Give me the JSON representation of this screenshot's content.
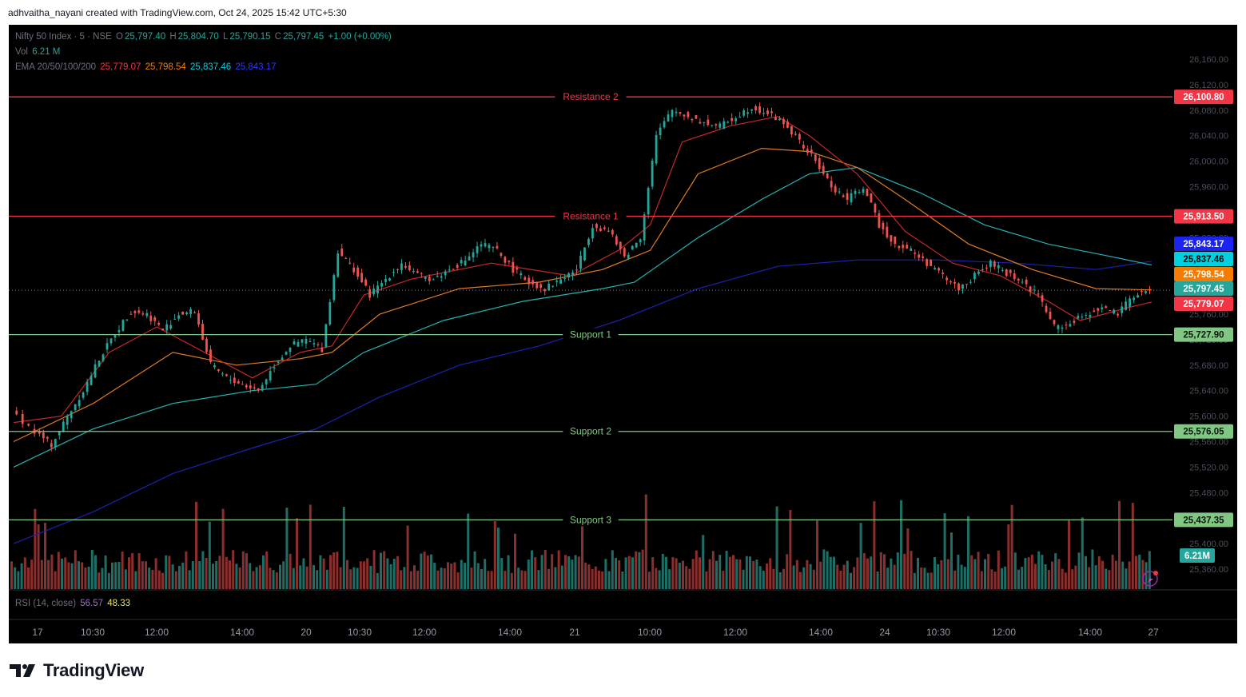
{
  "header": {
    "caption": "adhvaitha_nayani created with TradingView.com, Oct 24, 2025 15:42 UTC+5:30"
  },
  "legend": {
    "symbol": "Nifty 50 Index · 5 · NSE",
    "o_label": "O",
    "o_value": "25,797.40",
    "h_label": "H",
    "h_value": "25,804.70",
    "l_label": "L",
    "l_value": "25,790.15",
    "c_label": "C",
    "c_value": "25,797.45",
    "change": "+1.00 (+0.00%)",
    "vol_label": "Vol",
    "vol_value": "6.21 M",
    "ema_label": "EMA 20/50/100/200",
    "ema20": "25,779.07",
    "ema50": "25,798.54",
    "ema100": "25,837.46",
    "ema200": "25,843.17"
  },
  "rsi": {
    "label": "RSI (14, close)",
    "value1": "56.57",
    "value2": "48.33"
  },
  "brand": {
    "name": "TradingView"
  },
  "colors": {
    "bg": "#000000",
    "up": "#26a69a",
    "down": "#ef5350",
    "ema20": "#c62828",
    "ema50": "#e07b20",
    "ema100": "#26b2b2",
    "ema200": "#1a23b0",
    "resistance": "#f23645",
    "support": "#81c784"
  },
  "chart_data": {
    "type": "line",
    "title": "Nifty 50 Index · 5 · NSE",
    "ylim": [
      25340,
      26180
    ],
    "y_ticks": [
      "26,160.00",
      "26,120.00",
      "26,080.00",
      "26,040.00",
      "26,000.00",
      "25,960.00",
      "25,920.00",
      "25,880.00",
      "25,840.00",
      "25,800.00",
      "25,760.00",
      "25,720.00",
      "25,680.00",
      "25,640.00",
      "25,600.00",
      "25,560.00",
      "25,520.00",
      "25,480.00",
      "25,440.00",
      "25,400.00",
      "25,360.00"
    ],
    "x_ticks": [
      "17",
      "10:30",
      "12:00",
      "14:00",
      "20",
      "10:30",
      "12:00",
      "14:00",
      "21",
      "10:00",
      "12:00",
      "14:00",
      "24",
      "10:30",
      "12:00",
      "14:00",
      "27"
    ],
    "levels": [
      {
        "name": "Resistance 2",
        "value": 26100.8,
        "label": "26,100.80",
        "kind": "resistance"
      },
      {
        "name": "Resistance 1",
        "value": 25913.5,
        "label": "25,913.50",
        "kind": "resistance"
      },
      {
        "name": "Support 1",
        "value": 25727.9,
        "label": "25,727.90",
        "kind": "support"
      },
      {
        "name": "Support 2",
        "value": 25576.05,
        "label": "25,576.05",
        "kind": "support"
      },
      {
        "name": "Support 3",
        "value": 25437.35,
        "label": "25,437.35",
        "kind": "support"
      }
    ],
    "price_labels": [
      {
        "value": 25843.17,
        "label": "25,843.17",
        "color": "#1a23f0"
      },
      {
        "value": 25837.46,
        "label": "25,837.46",
        "color": "#00d0e0"
      },
      {
        "value": 25798.54,
        "label": "25,798.54",
        "color": "#f57c00"
      },
      {
        "value": 25797.45,
        "label": "25,797.45",
        "color": "#26a69a"
      },
      {
        "value": 25779.07,
        "label": "25,779.07",
        "color": "#f23645"
      }
    ],
    "last_close": 25797.45,
    "volume_label": "6.21M",
    "close_path": [
      [
        0,
        25610
      ],
      [
        3,
        25575
      ],
      [
        5,
        25555
      ],
      [
        7,
        25600
      ],
      [
        9,
        25640
      ],
      [
        11,
        25690
      ],
      [
        13,
        25730
      ],
      [
        15,
        25765
      ],
      [
        17,
        25760
      ],
      [
        19,
        25735
      ],
      [
        21,
        25760
      ],
      [
        23,
        25765
      ],
      [
        25,
        25680
      ],
      [
        27,
        25660
      ],
      [
        29,
        25650
      ],
      [
        31,
        25640
      ],
      [
        33,
        25680
      ],
      [
        35,
        25710
      ],
      [
        37,
        25720
      ],
      [
        39,
        25705
      ],
      [
        41,
        25860
      ],
      [
        43,
        25830
      ],
      [
        45,
        25790
      ],
      [
        47,
        25815
      ],
      [
        49,
        25840
      ],
      [
        51,
        25820
      ],
      [
        53,
        25815
      ],
      [
        55,
        25830
      ],
      [
        57,
        25845
      ],
      [
        59,
        25870
      ],
      [
        61,
        25860
      ],
      [
        63,
        25830
      ],
      [
        65,
        25810
      ],
      [
        67,
        25800
      ],
      [
        69,
        25815
      ],
      [
        71,
        25830
      ],
      [
        73,
        25900
      ],
      [
        75,
        25890
      ],
      [
        77,
        25850
      ],
      [
        79,
        25880
      ],
      [
        81,
        26040
      ],
      [
        83,
        26080
      ],
      [
        85,
        26070
      ],
      [
        87,
        26060
      ],
      [
        89,
        26055
      ],
      [
        91,
        26070
      ],
      [
        93,
        26085
      ],
      [
        95,
        26075
      ],
      [
        97,
        26060
      ],
      [
        99,
        26030
      ],
      [
        101,
        26000
      ],
      [
        103,
        25960
      ],
      [
        105,
        25940
      ],
      [
        107,
        25960
      ],
      [
        109,
        25900
      ],
      [
        111,
        25870
      ],
      [
        113,
        25860
      ],
      [
        115,
        25840
      ],
      [
        117,
        25820
      ],
      [
        119,
        25800
      ],
      [
        121,
        25820
      ],
      [
        123,
        25840
      ],
      [
        125,
        25825
      ],
      [
        127,
        25810
      ],
      [
        129,
        25790
      ],
      [
        131,
        25740
      ],
      [
        133,
        25745
      ],
      [
        135,
        25760
      ],
      [
        137,
        25770
      ],
      [
        139,
        25760
      ],
      [
        141,
        25790
      ],
      [
        143,
        25797
      ]
    ],
    "ema20_path": [
      [
        0,
        25590
      ],
      [
        6,
        25600
      ],
      [
        12,
        25700
      ],
      [
        18,
        25740
      ],
      [
        24,
        25700
      ],
      [
        30,
        25660
      ],
      [
        36,
        25700
      ],
      [
        40,
        25710
      ],
      [
        44,
        25790
      ],
      [
        50,
        25815
      ],
      [
        60,
        25840
      ],
      [
        70,
        25820
      ],
      [
        76,
        25860
      ],
      [
        80,
        25900
      ],
      [
        84,
        26030
      ],
      [
        90,
        26055
      ],
      [
        96,
        26070
      ],
      [
        100,
        26040
      ],
      [
        106,
        25980
      ],
      [
        112,
        25890
      ],
      [
        118,
        25840
      ],
      [
        124,
        25820
      ],
      [
        130,
        25780
      ],
      [
        134,
        25750
      ],
      [
        140,
        25770
      ],
      [
        143,
        25779
      ]
    ],
    "ema50_path": [
      [
        0,
        25560
      ],
      [
        10,
        25620
      ],
      [
        20,
        25700
      ],
      [
        28,
        25680
      ],
      [
        36,
        25690
      ],
      [
        40,
        25700
      ],
      [
        46,
        25760
      ],
      [
        56,
        25800
      ],
      [
        66,
        25810
      ],
      [
        74,
        25830
      ],
      [
        80,
        25860
      ],
      [
        86,
        25980
      ],
      [
        94,
        26020
      ],
      [
        100,
        26015
      ],
      [
        106,
        25990
      ],
      [
        112,
        25940
      ],
      [
        120,
        25870
      ],
      [
        128,
        25830
      ],
      [
        136,
        25800
      ],
      [
        143,
        25798
      ]
    ],
    "ema100_path": [
      [
        0,
        25520
      ],
      [
        10,
        25580
      ],
      [
        20,
        25620
      ],
      [
        30,
        25640
      ],
      [
        38,
        25650
      ],
      [
        44,
        25700
      ],
      [
        54,
        25750
      ],
      [
        64,
        25780
      ],
      [
        74,
        25800
      ],
      [
        78,
        25810
      ],
      [
        86,
        25880
      ],
      [
        94,
        25940
      ],
      [
        100,
        25980
      ],
      [
        106,
        25990
      ],
      [
        114,
        25950
      ],
      [
        122,
        25900
      ],
      [
        130,
        25870
      ],
      [
        138,
        25850
      ],
      [
        143,
        25837
      ]
    ],
    "ema200_path": [
      [
        0,
        25400
      ],
      [
        10,
        25450
      ],
      [
        20,
        25510
      ],
      [
        30,
        25550
      ],
      [
        38,
        25580
      ],
      [
        46,
        25630
      ],
      [
        56,
        25680
      ],
      [
        66,
        25710
      ],
      [
        76,
        25750
      ],
      [
        86,
        25800
      ],
      [
        96,
        25835
      ],
      [
        106,
        25845
      ],
      [
        116,
        25845
      ],
      [
        126,
        25840
      ],
      [
        136,
        25830
      ],
      [
        143,
        25843
      ]
    ]
  }
}
